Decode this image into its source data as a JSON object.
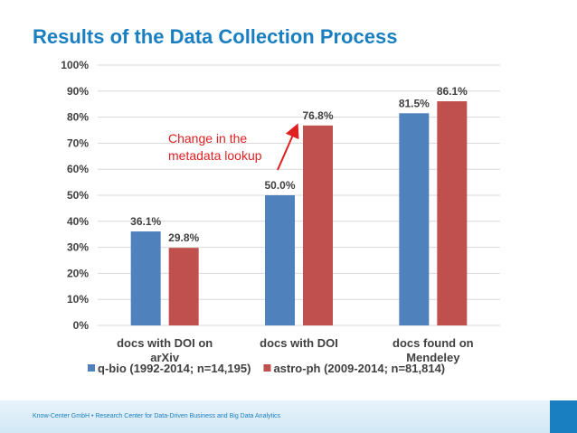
{
  "page": {
    "title": "Results of the Data Collection Process",
    "footer": "Know-Center GmbH • Research Center for Data-Driven Business and Big Data Analytics"
  },
  "colors": {
    "title": "#1a7fc1",
    "series1": "#4f81bd",
    "series2": "#c0504d",
    "annotation": "#e02020",
    "grid": "#d9d9d9"
  },
  "chart_data": {
    "type": "bar",
    "title": "Results of the Data Collection Process",
    "xlabel": "",
    "ylabel": "",
    "ylim": [
      0,
      100
    ],
    "yticks": [
      0,
      10,
      20,
      30,
      40,
      50,
      60,
      70,
      80,
      90,
      100
    ],
    "ytick_labels": [
      "0%",
      "10%",
      "20%",
      "30%",
      "40%",
      "50%",
      "60%",
      "70%",
      "80%",
      "90%",
      "100%"
    ],
    "grid": true,
    "legend": "bottom",
    "categories": [
      [
        "docs with DOI on",
        "arXiv"
      ],
      [
        "docs with DOI"
      ],
      [
        "docs found on",
        "Mendeley"
      ]
    ],
    "series": [
      {
        "name": "q-bio (1992-2014; n=14,195)",
        "values": [
          36.1,
          50.0,
          81.5
        ],
        "labels": [
          "36.1%",
          "50.0%",
          "81.5%"
        ]
      },
      {
        "name": "astro-ph (2009-2014; n=81,814)",
        "values": [
          29.8,
          76.8,
          86.1
        ],
        "labels": [
          "29.8%",
          "76.8%",
          "86.1%"
        ]
      }
    ],
    "annotation": {
      "lines": [
        "Change in the",
        "metadata lookup"
      ]
    }
  }
}
